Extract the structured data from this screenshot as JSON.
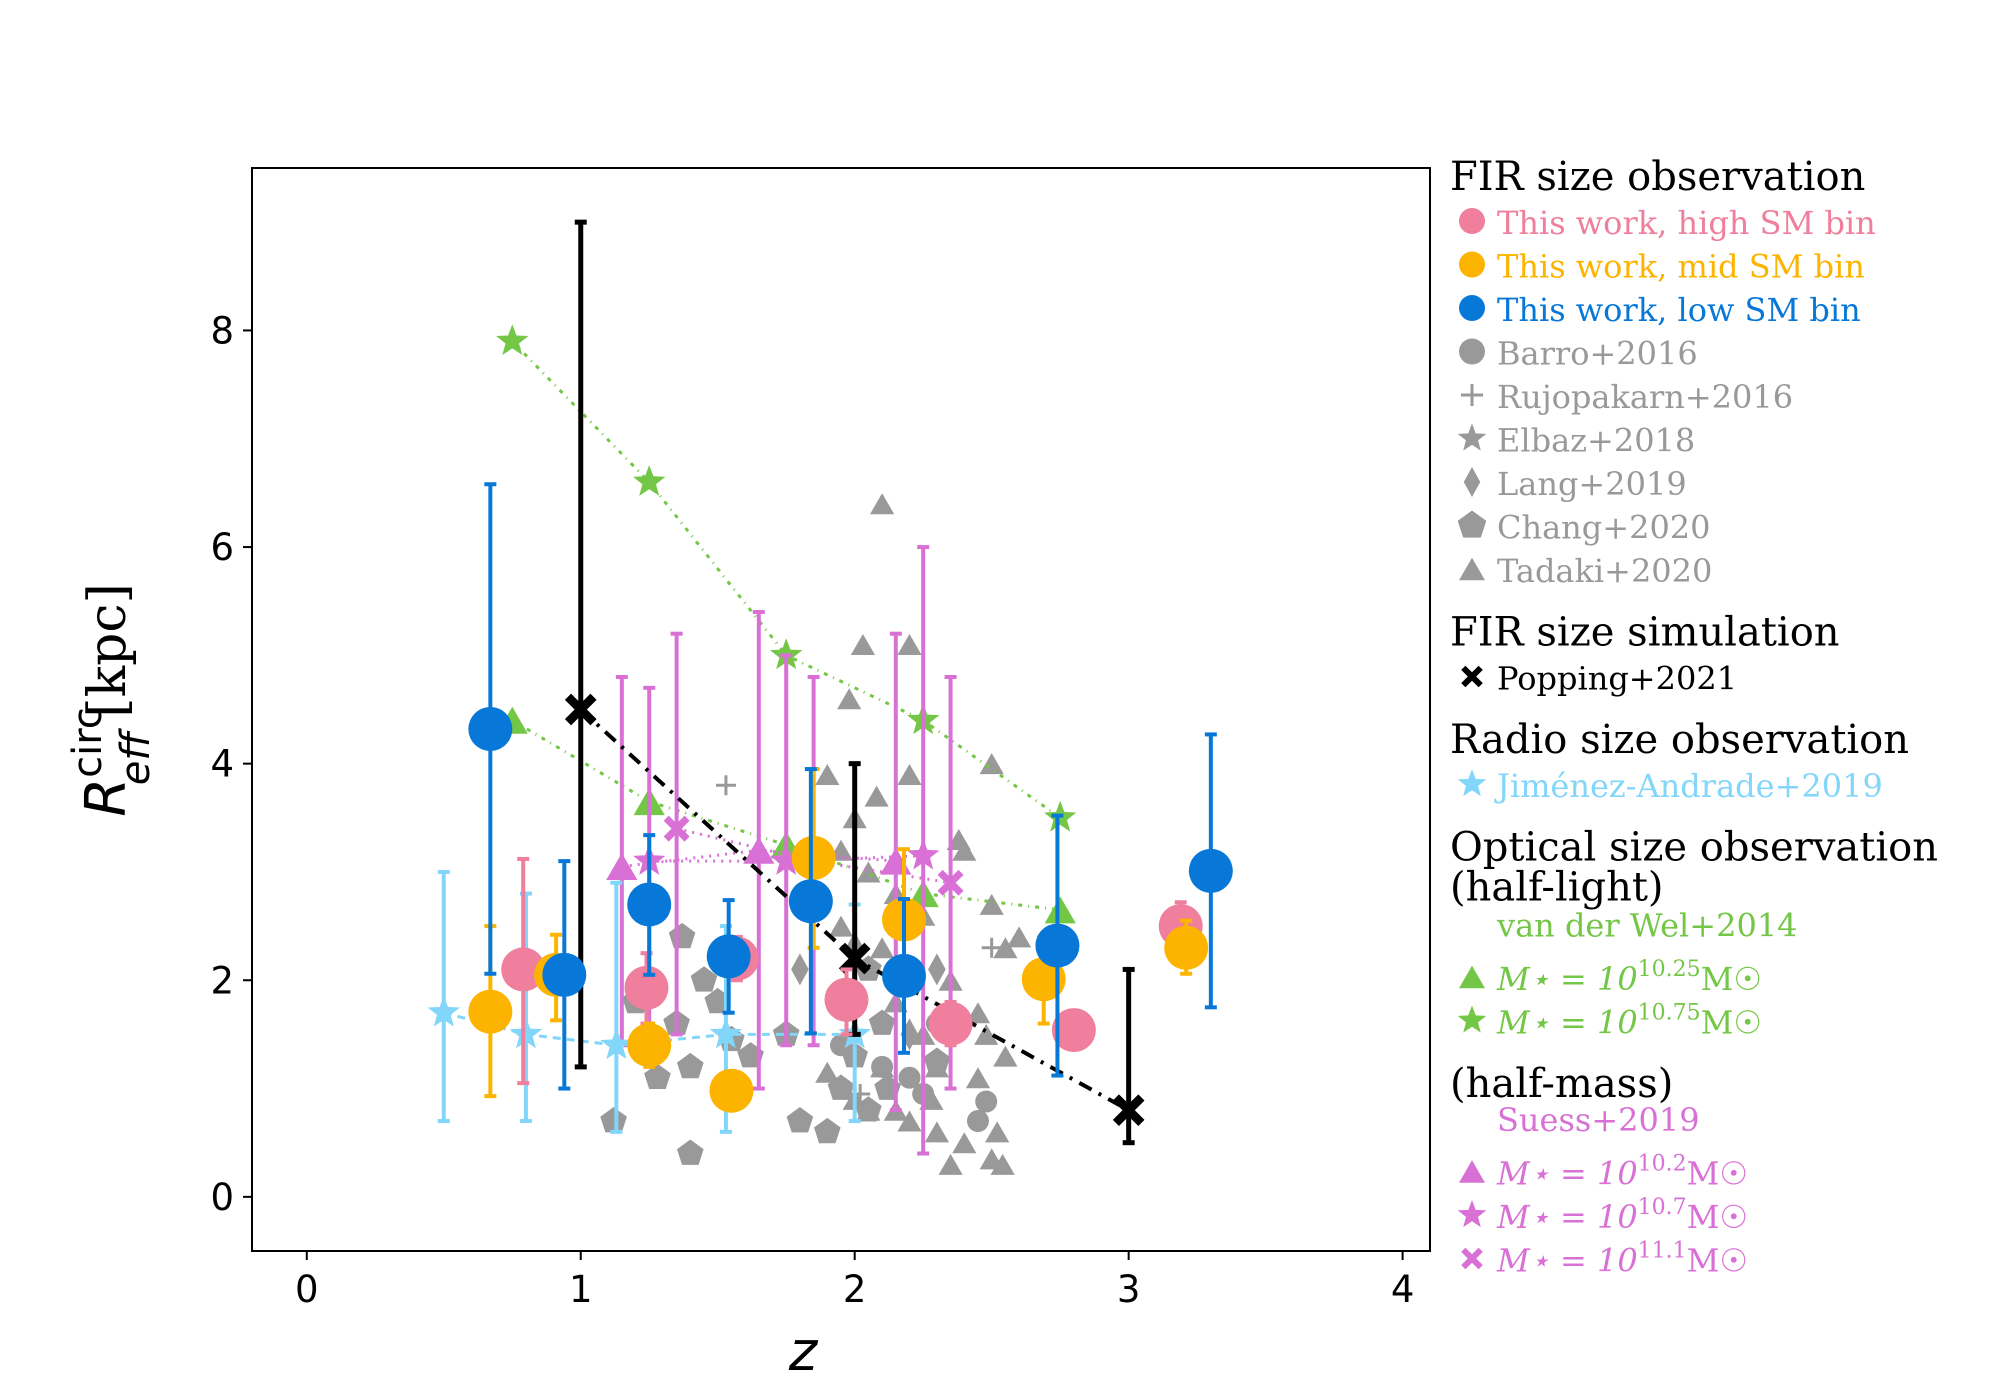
{
  "chart_data": {
    "type": "scatter",
    "title": "",
    "xlabel": "z",
    "ylabel_main": "R",
    "ylabel_sup": "circ",
    "ylabel_sub": "eff",
    "ylabel_unit": "[kpc]",
    "xlim": [
      -0.2,
      4.1
    ],
    "ylim": [
      -0.5,
      9.5
    ],
    "xticks": [
      0,
      1,
      2,
      3,
      4
    ],
    "yticks": [
      0,
      2,
      4,
      6,
      8
    ],
    "grid": false,
    "legend_position": "right, outside plot",
    "colors": {
      "high": "#ef7f9c",
      "mid": "#fcb400",
      "low": "#0878d8",
      "literature": "#999999",
      "popping": "#000000",
      "jimenez": "#82d6fa",
      "vanderwel": "#74c646",
      "suess": "#d870d6"
    },
    "series": [
      {
        "name": "This work, high SM bin",
        "marker": "circle",
        "color": "#ef7f9c",
        "points": [
          {
            "x": 0.79,
            "y": 2.1,
            "lo": 1.05,
            "hi": 3.12
          },
          {
            "x": 1.24,
            "y": 1.93,
            "lo": 1.6,
            "hi": 2.25
          },
          {
            "x": 1.57,
            "y": 2.2,
            "lo": 2.0,
            "hi": 2.4
          },
          {
            "x": 1.97,
            "y": 1.82,
            "lo": 1.5,
            "hi": 2.1
          },
          {
            "x": 2.35,
            "y": 1.6,
            "lo": 1.4,
            "hi": 1.8
          },
          {
            "x": 2.8,
            "y": 1.54,
            "lo": 1.4,
            "hi": 1.7
          },
          {
            "x": 3.19,
            "y": 2.5,
            "lo": 2.3,
            "hi": 2.72
          }
        ]
      },
      {
        "name": "This work, mid SM bin",
        "marker": "circle",
        "color": "#fcb400",
        "points": [
          {
            "x": 0.67,
            "y": 1.71,
            "lo": 0.93,
            "hi": 2.5
          },
          {
            "x": 0.91,
            "y": 2.05,
            "lo": 1.63,
            "hi": 2.42
          },
          {
            "x": 1.25,
            "y": 1.4,
            "lo": 1.2,
            "hi": 1.6
          },
          {
            "x": 1.55,
            "y": 0.98,
            "lo": 0.83,
            "hi": 1.13
          },
          {
            "x": 1.85,
            "y": 3.13,
            "lo": 2.3,
            "hi": 3.95
          },
          {
            "x": 2.18,
            "y": 2.56,
            "lo": 1.88,
            "hi": 3.21
          },
          {
            "x": 2.69,
            "y": 2.01,
            "lo": 1.6,
            "hi": 2.4
          },
          {
            "x": 3.21,
            "y": 2.3,
            "lo": 2.06,
            "hi": 2.55
          }
        ]
      },
      {
        "name": "This work, low SM bin",
        "marker": "circle",
        "color": "#0878d8",
        "points": [
          {
            "x": 0.67,
            "y": 4.32,
            "lo": 2.06,
            "hi": 6.58
          },
          {
            "x": 0.94,
            "y": 2.05,
            "lo": 1.0,
            "hi": 3.1
          },
          {
            "x": 1.25,
            "y": 2.7,
            "lo": 2.05,
            "hi": 3.34
          },
          {
            "x": 1.54,
            "y": 2.22,
            "lo": 1.7,
            "hi": 2.74
          },
          {
            "x": 1.84,
            "y": 2.73,
            "lo": 1.51,
            "hi": 3.95
          },
          {
            "x": 2.18,
            "y": 2.04,
            "lo": 1.33,
            "hi": 2.75
          },
          {
            "x": 2.74,
            "y": 2.32,
            "lo": 1.12,
            "hi": 3.52
          },
          {
            "x": 3.3,
            "y": 3.01,
            "lo": 1.75,
            "hi": 4.27
          }
        ]
      },
      {
        "name": "Popping+2021",
        "marker": "x",
        "color": "#000000",
        "line": true,
        "points": [
          {
            "x": 1.0,
            "y": 4.5,
            "lo": 1.2,
            "hi": 9.0
          },
          {
            "x": 2.0,
            "y": 2.2,
            "lo": 1.5,
            "hi": 4.0
          },
          {
            "x": 3.0,
            "y": 0.8,
            "lo": 0.5,
            "hi": 2.1
          }
        ]
      },
      {
        "name": "Jiménez-Andrade+2019",
        "marker": "star",
        "color": "#82d6fa",
        "line": true,
        "points": [
          {
            "x": 0.5,
            "y": 1.7,
            "lo": 0.7,
            "hi": 3.0
          },
          {
            "x": 0.8,
            "y": 1.5,
            "lo": 0.7,
            "hi": 2.8
          },
          {
            "x": 1.13,
            "y": 1.4,
            "lo": 0.6,
            "hi": 2.9
          },
          {
            "x": 1.53,
            "y": 1.5,
            "lo": 0.6,
            "hi": 2.5
          },
          {
            "x": 2.0,
            "y": 1.5,
            "lo": 0.7,
            "hi": 2.7
          }
        ]
      },
      {
        "name": "van der Wel+2014, M = 10^10.25",
        "marker": "triangle",
        "color": "#74c646",
        "line": true,
        "points": [
          {
            "x": 0.75,
            "y": 4.4
          },
          {
            "x": 1.25,
            "y": 3.65
          },
          {
            "x": 1.75,
            "y": 3.25
          },
          {
            "x": 2.25,
            "y": 2.8
          },
          {
            "x": 2.75,
            "y": 2.65
          }
        ]
      },
      {
        "name": "van der Wel+2014, M = 10^10.75",
        "marker": "star",
        "color": "#74c646",
        "line": true,
        "points": [
          {
            "x": 0.75,
            "y": 7.9
          },
          {
            "x": 1.25,
            "y": 6.6
          },
          {
            "x": 1.75,
            "y": 5.0
          },
          {
            "x": 2.25,
            "y": 4.4
          },
          {
            "x": 2.75,
            "y": 3.5
          }
        ]
      },
      {
        "name": "Suess+2019, M = 10^10.2",
        "marker": "triangle",
        "color": "#d870d6",
        "line": true,
        "points": [
          {
            "x": 1.15,
            "y": 3.05,
            "lo": 1.4,
            "hi": 4.8
          },
          {
            "x": 1.65,
            "y": 3.2,
            "lo": 1.0,
            "hi": 5.4
          },
          {
            "x": 2.15,
            "y": 3.1,
            "lo": 0.8,
            "hi": 5.2
          }
        ]
      },
      {
        "name": "Suess+2019, M = 10^10.7",
        "marker": "star",
        "color": "#d870d6",
        "line": true,
        "points": [
          {
            "x": 1.25,
            "y": 3.1,
            "lo": 1.4,
            "hi": 4.7
          },
          {
            "x": 1.75,
            "y": 3.1,
            "lo": 1.4,
            "hi": 5.0
          },
          {
            "x": 2.25,
            "y": 3.15,
            "lo": 0.4,
            "hi": 6.0
          }
        ]
      },
      {
        "name": "Suess+2019, M = 10^11.1",
        "marker": "x",
        "color": "#d870d6",
        "line": true,
        "points": [
          {
            "x": 1.35,
            "y": 3.4,
            "lo": 1.5,
            "hi": 5.2
          },
          {
            "x": 1.85,
            "y": 3.1,
            "lo": 1.4,
            "hi": 4.8
          },
          {
            "x": 2.35,
            "y": 2.9,
            "lo": 1.0,
            "hi": 4.8
          }
        ]
      },
      {
        "name": "Barro+2016",
        "marker": "circle",
        "color": "#999999",
        "points": [
          {
            "x": 2.1,
            "y": 1.2
          },
          {
            "x": 2.2,
            "y": 1.1
          },
          {
            "x": 2.3,
            "y": 1.6
          },
          {
            "x": 2.45,
            "y": 0.7
          },
          {
            "x": 2.48,
            "y": 0.88
          },
          {
            "x": 2.25,
            "y": 0.95
          },
          {
            "x": 1.95,
            "y": 1.4
          }
        ]
      },
      {
        "name": "Rujopakarn+2016",
        "marker": "plus",
        "color": "#999999",
        "points": [
          {
            "x": 1.53,
            "y": 3.8
          },
          {
            "x": 2.5,
            "y": 2.3
          },
          {
            "x": 2.02,
            "y": 0.95
          },
          {
            "x": 2.2,
            "y": 2.0
          }
        ]
      },
      {
        "name": "Lang+2019",
        "marker": "diamond",
        "color": "#999999",
        "points": [
          {
            "x": 1.8,
            "y": 2.1
          },
          {
            "x": 2.0,
            "y": 2.3
          },
          {
            "x": 2.2,
            "y": 1.5
          },
          {
            "x": 2.3,
            "y": 2.1
          }
        ]
      },
      {
        "name": "Chang+2020",
        "marker": "pentagon",
        "color": "#999999",
        "points": [
          {
            "x": 1.12,
            "y": 0.7
          },
          {
            "x": 1.2,
            "y": 1.8
          },
          {
            "x": 1.28,
            "y": 1.1
          },
          {
            "x": 1.35,
            "y": 1.6
          },
          {
            "x": 1.4,
            "y": 0.4
          },
          {
            "x": 1.4,
            "y": 1.2
          },
          {
            "x": 1.45,
            "y": 2.0
          },
          {
            "x": 1.37,
            "y": 2.4
          },
          {
            "x": 1.5,
            "y": 1.8
          },
          {
            "x": 1.55,
            "y": 1.45
          },
          {
            "x": 1.62,
            "y": 1.3
          },
          {
            "x": 1.75,
            "y": 1.5
          },
          {
            "x": 1.8,
            "y": 0.7
          },
          {
            "x": 1.9,
            "y": 0.6
          },
          {
            "x": 2.0,
            "y": 1.3
          },
          {
            "x": 2.05,
            "y": 0.8
          },
          {
            "x": 2.1,
            "y": 1.6
          },
          {
            "x": 1.95,
            "y": 1.0
          },
          {
            "x": 2.3,
            "y": 1.25
          },
          {
            "x": 2.05,
            "y": 2.1
          },
          {
            "x": 2.12,
            "y": 1.0
          }
        ]
      },
      {
        "name": "Tadaki+2020",
        "marker": "triangle",
        "color": "#999999",
        "points": [
          {
            "x": 2.1,
            "y": 6.4
          },
          {
            "x": 2.03,
            "y": 5.1
          },
          {
            "x": 2.2,
            "y": 5.1
          },
          {
            "x": 1.98,
            "y": 4.6
          },
          {
            "x": 2.5,
            "y": 4.0
          },
          {
            "x": 1.9,
            "y": 3.9
          },
          {
            "x": 2.2,
            "y": 3.9
          },
          {
            "x": 2.08,
            "y": 3.7
          },
          {
            "x": 2.0,
            "y": 3.5
          },
          {
            "x": 1.95,
            "y": 3.2
          },
          {
            "x": 2.38,
            "y": 3.3
          },
          {
            "x": 2.4,
            "y": 3.2
          },
          {
            "x": 2.05,
            "y": 3.0
          },
          {
            "x": 2.15,
            "y": 2.8
          },
          {
            "x": 2.25,
            "y": 2.6
          },
          {
            "x": 2.5,
            "y": 2.7
          },
          {
            "x": 1.95,
            "y": 2.5
          },
          {
            "x": 2.1,
            "y": 2.3
          },
          {
            "x": 2.55,
            "y": 2.3
          },
          {
            "x": 2.35,
            "y": 2.0
          },
          {
            "x": 2.6,
            "y": 2.4
          },
          {
            "x": 2.0,
            "y": 1.9
          },
          {
            "x": 2.15,
            "y": 1.8
          },
          {
            "x": 2.45,
            "y": 1.7
          },
          {
            "x": 2.25,
            "y": 1.5
          },
          {
            "x": 2.48,
            "y": 1.5
          },
          {
            "x": 2.55,
            "y": 1.3
          },
          {
            "x": 2.1,
            "y": 1.2
          },
          {
            "x": 2.3,
            "y": 1.2
          },
          {
            "x": 2.45,
            "y": 1.1
          },
          {
            "x": 2.0,
            "y": 0.9
          },
          {
            "x": 2.05,
            "y": 0.8
          },
          {
            "x": 2.15,
            "y": 0.8
          },
          {
            "x": 2.2,
            "y": 0.7
          },
          {
            "x": 2.3,
            "y": 0.6
          },
          {
            "x": 2.4,
            "y": 0.5
          },
          {
            "x": 2.52,
            "y": 0.6
          },
          {
            "x": 2.35,
            "y": 0.3
          },
          {
            "x": 2.5,
            "y": 0.35
          },
          {
            "x": 2.54,
            "y": 0.3
          },
          {
            "x": 2.28,
            "y": 0.9
          },
          {
            "x": 1.9,
            "y": 1.15
          }
        ]
      },
      {
        "name": "Elbaz+2018",
        "marker": "star",
        "color": "#999999",
        "points": []
      }
    ]
  },
  "legend": {
    "sections": [
      {
        "heading": "FIR size observation",
        "items": [
          {
            "marker": "circle",
            "color": "#ef7f9c",
            "label": "This work, high SM bin"
          },
          {
            "marker": "circle",
            "color": "#fcb400",
            "label": "This work, mid SM bin"
          },
          {
            "marker": "circle",
            "color": "#0878d8",
            "label": "This work, low SM bin"
          },
          {
            "marker": "circle",
            "color": "#999999",
            "label": "Barro+2016"
          },
          {
            "marker": "plus",
            "color": "#999999",
            "label": "Rujopakarn+2016"
          },
          {
            "marker": "star",
            "color": "#999999",
            "label": "Elbaz+2018"
          },
          {
            "marker": "diamond",
            "color": "#999999",
            "label": "Lang+2019"
          },
          {
            "marker": "pentagon",
            "color": "#999999",
            "label": "Chang+2020"
          },
          {
            "marker": "triangle",
            "color": "#999999",
            "label": "Tadaki+2020"
          }
        ]
      },
      {
        "heading": "FIR size simulation",
        "items": [
          {
            "marker": "x",
            "color": "#000000",
            "label": "Popping+2021"
          }
        ]
      },
      {
        "heading": "Radio size observation",
        "items": [
          {
            "marker": "star",
            "color": "#82d6fa",
            "label": "Jiménez-Andrade+2019"
          }
        ]
      },
      {
        "heading": "Optical size observation",
        "heading2": "(half-light)",
        "sub": "van der Wel+2014",
        "sub_color": "#74c646",
        "items": [
          {
            "marker": "triangle",
            "color": "#74c646",
            "label": "M⋆ = 10",
            "exp": "10.25",
            "unit": "M☉"
          },
          {
            "marker": "star",
            "color": "#74c646",
            "label": "M⋆ = 10",
            "exp": "10.75",
            "unit": "M☉"
          }
        ]
      },
      {
        "heading": "(half-mass)",
        "sub": "Suess+2019",
        "sub_color": "#d870d6",
        "items": [
          {
            "marker": "triangle",
            "color": "#d870d6",
            "label": "M⋆ = 10",
            "exp": "10.2",
            "unit": "M☉"
          },
          {
            "marker": "star",
            "color": "#d870d6",
            "label": "M⋆ = 10",
            "exp": "10.7",
            "unit": "M☉"
          },
          {
            "marker": "x",
            "color": "#d870d6",
            "label": "M⋆ = 10",
            "exp": "11.1",
            "unit": "M☉"
          }
        ]
      }
    ]
  }
}
